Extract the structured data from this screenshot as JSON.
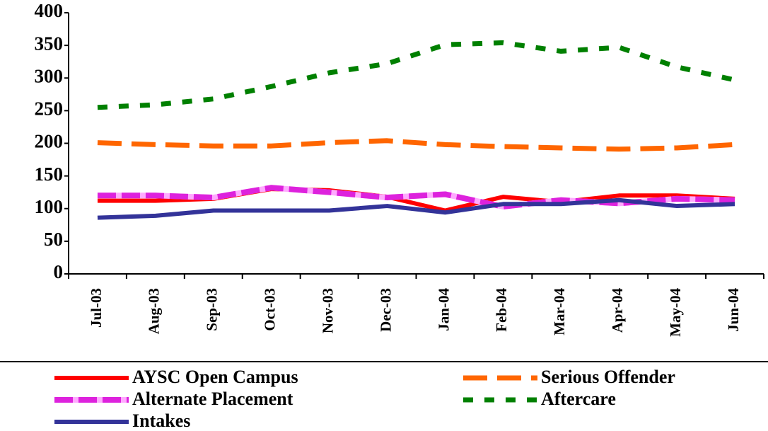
{
  "chart_data": {
    "type": "line",
    "categories": [
      "Jul-03",
      "Aug-03",
      "Sep-03",
      "Oct-03",
      "Nov-03",
      "Dec-03",
      "Jan-04",
      "Feb-04",
      "Mar-04",
      "Apr-04",
      "May-04",
      "Jun-04"
    ],
    "series": [
      {
        "name": "AYSC Open Campus",
        "color": "#ff0000",
        "style": "solid",
        "values": [
          112,
          112,
          115,
          130,
          128,
          118,
          97,
          118,
          110,
          120,
          120,
          115
        ]
      },
      {
        "name": "Serious Offender",
        "color": "#ff6600",
        "style": "dashed",
        "values": [
          201,
          198,
          196,
          196,
          201,
          204,
          198,
          195,
          193,
          191,
          193,
          198
        ]
      },
      {
        "name": "Alternate Placement",
        "color": "#dd22dd",
        "style": "dashed-alt",
        "values": [
          120,
          120,
          117,
          132,
          125,
          117,
          122,
          103,
          113,
          108,
          115,
          113
        ]
      },
      {
        "name": "Aftercare",
        "color": "#008000",
        "style": "dotted",
        "values": [
          255,
          259,
          268,
          287,
          308,
          322,
          351,
          354,
          341,
          347,
          317,
          297
        ]
      },
      {
        "name": "Intakes",
        "color": "#333399",
        "style": "solid",
        "values": [
          86,
          89,
          97,
          97,
          97,
          104,
          94,
          107,
          107,
          113,
          104,
          107
        ]
      }
    ],
    "ylim": [
      0,
      400
    ],
    "yticks": [
      0,
      50,
      100,
      150,
      200,
      250,
      300,
      350,
      400
    ]
  }
}
